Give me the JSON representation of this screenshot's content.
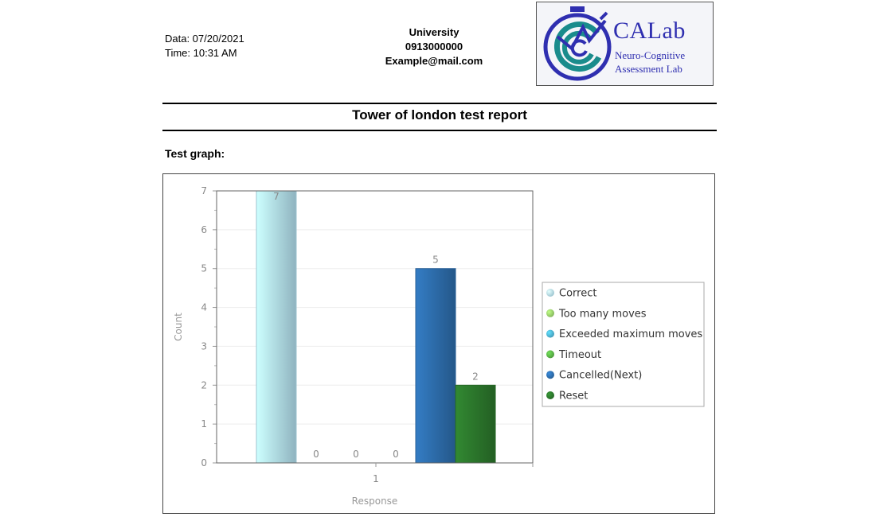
{
  "header": {
    "date_line": "Data: 07/20/2021",
    "time_line": "Time: 10:31 AM",
    "contact": {
      "name": "University",
      "phone": "0913000000",
      "email": "Example@mail.com"
    },
    "logo": {
      "name": "CALab",
      "subtitle_line1": "Neuro-Cognitive",
      "subtitle_line2": "Assessment Lab",
      "colors": {
        "navy": "#2f2fb0",
        "teal": "#1a8c8c",
        "bg": "#f4f5f9"
      }
    }
  },
  "report": {
    "title": "Tower of london test report",
    "section_label": "Test graph:"
  },
  "chart_data": {
    "type": "bar",
    "categories": [
      "1"
    ],
    "series": [
      {
        "name": "Correct",
        "values": [
          7
        ],
        "color": "#b7e6f5"
      },
      {
        "name": "Too many moves",
        "values": [
          0
        ],
        "color": "#9ad46c"
      },
      {
        "name": "Exceeded maximum moves",
        "values": [
          0
        ],
        "color": "#4fb5d8"
      },
      {
        "name": "Timeout",
        "values": [
          0
        ],
        "color": "#5cb548"
      },
      {
        "name": "Cancelled(Next)",
        "values": [
          5
        ],
        "color": "#2e70b0"
      },
      {
        "name": "Reset",
        "values": [
          2
        ],
        "color": "#2d7a2d"
      }
    ],
    "xlabel": "Response",
    "ylabel": "Count",
    "ylim": [
      0,
      7
    ],
    "yticks": [
      "0",
      "1",
      "2",
      "3",
      "4",
      "5",
      "6",
      "7"
    ],
    "legend_position": "right",
    "grid": true
  }
}
